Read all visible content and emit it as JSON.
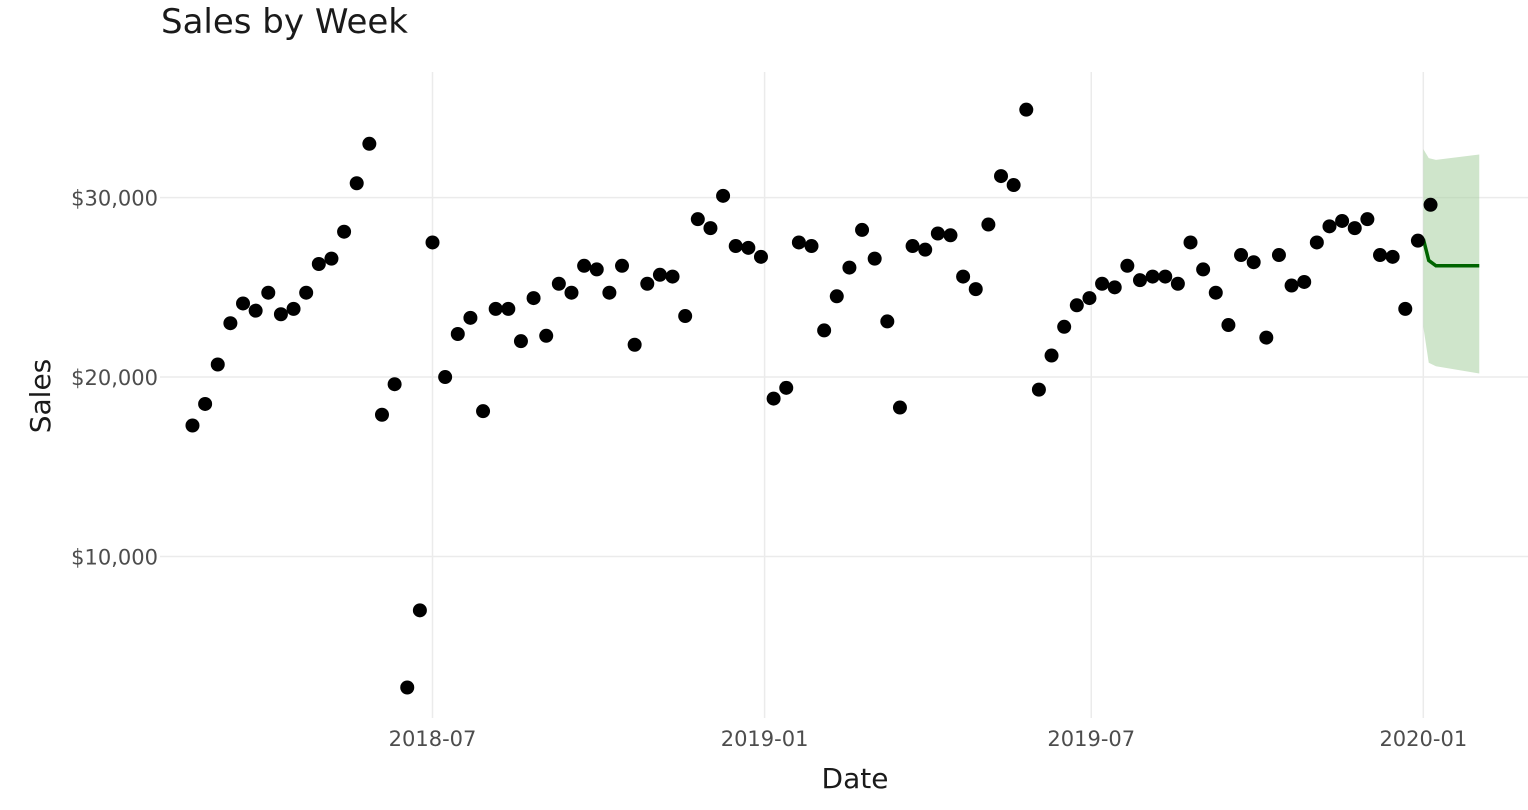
{
  "chart_data": {
    "type": "scatter",
    "title": "Sales by Week",
    "xlabel": "Date",
    "ylabel": "Sales",
    "x_axis": {
      "scale": "date",
      "range": [
        "2018-01-31",
        "2020-02-28"
      ],
      "ticks": [
        {
          "date": "2018-07-01",
          "label": "2018-07"
        },
        {
          "date": "2019-01-01",
          "label": "2019-01"
        },
        {
          "date": "2019-07-01",
          "label": "2019-07"
        },
        {
          "date": "2020-01-01",
          "label": "2020-01"
        }
      ]
    },
    "y_axis": {
      "range": [
        1000,
        37000
      ],
      "ticks": [
        {
          "value": 10000,
          "label": "$10,000"
        },
        {
          "value": 20000,
          "label": "$20,000"
        },
        {
          "value": 30000,
          "label": "$30,000"
        }
      ]
    },
    "grid": true,
    "series": [
      {
        "type": "scatter",
        "color": "#000000",
        "points": [
          {
            "x": "2018-02-18",
            "y": 17300
          },
          {
            "x": "2018-02-25",
            "y": 18500
          },
          {
            "x": "2018-03-04",
            "y": 20700
          },
          {
            "x": "2018-03-11",
            "y": 23000
          },
          {
            "x": "2018-03-18",
            "y": 24100
          },
          {
            "x": "2018-03-25",
            "y": 23700
          },
          {
            "x": "2018-04-01",
            "y": 24700
          },
          {
            "x": "2018-04-08",
            "y": 23500
          },
          {
            "x": "2018-04-15",
            "y": 23800
          },
          {
            "x": "2018-04-22",
            "y": 24700
          },
          {
            "x": "2018-04-29",
            "y": 26300
          },
          {
            "x": "2018-05-06",
            "y": 26600
          },
          {
            "x": "2018-05-13",
            "y": 28100
          },
          {
            "x": "2018-05-20",
            "y": 30800
          },
          {
            "x": "2018-05-27",
            "y": 33000
          },
          {
            "x": "2018-06-03",
            "y": 17900
          },
          {
            "x": "2018-06-10",
            "y": 19600
          },
          {
            "x": "2018-06-17",
            "y": 2700
          },
          {
            "x": "2018-06-24",
            "y": 7000
          },
          {
            "x": "2018-07-01",
            "y": 27500
          },
          {
            "x": "2018-07-08",
            "y": 20000
          },
          {
            "x": "2018-07-15",
            "y": 22400
          },
          {
            "x": "2018-07-22",
            "y": 23300
          },
          {
            "x": "2018-07-29",
            "y": 18100
          },
          {
            "x": "2018-08-05",
            "y": 23800
          },
          {
            "x": "2018-08-12",
            "y": 23800
          },
          {
            "x": "2018-08-19",
            "y": 22000
          },
          {
            "x": "2018-08-26",
            "y": 24400
          },
          {
            "x": "2018-09-02",
            "y": 22300
          },
          {
            "x": "2018-09-09",
            "y": 25200
          },
          {
            "x": "2018-09-16",
            "y": 24700
          },
          {
            "x": "2018-09-23",
            "y": 26200
          },
          {
            "x": "2018-09-30",
            "y": 26000
          },
          {
            "x": "2018-10-07",
            "y": 24700
          },
          {
            "x": "2018-10-14",
            "y": 26200
          },
          {
            "x": "2018-10-21",
            "y": 21800
          },
          {
            "x": "2018-10-28",
            "y": 25200
          },
          {
            "x": "2018-11-04",
            "y": 25700
          },
          {
            "x": "2018-11-11",
            "y": 25600
          },
          {
            "x": "2018-11-18",
            "y": 23400
          },
          {
            "x": "2018-11-25",
            "y": 28800
          },
          {
            "x": "2018-12-02",
            "y": 28300
          },
          {
            "x": "2018-12-09",
            "y": 30100
          },
          {
            "x": "2018-12-16",
            "y": 27300
          },
          {
            "x": "2018-12-23",
            "y": 27200
          },
          {
            "x": "2018-12-30",
            "y": 26700
          },
          {
            "x": "2019-01-06",
            "y": 18800
          },
          {
            "x": "2019-01-13",
            "y": 19400
          },
          {
            "x": "2019-01-20",
            "y": 27500
          },
          {
            "x": "2019-01-27",
            "y": 27300
          },
          {
            "x": "2019-02-03",
            "y": 22600
          },
          {
            "x": "2019-02-10",
            "y": 24500
          },
          {
            "x": "2019-02-17",
            "y": 26100
          },
          {
            "x": "2019-02-24",
            "y": 28200
          },
          {
            "x": "2019-03-03",
            "y": 26600
          },
          {
            "x": "2019-03-10",
            "y": 23100
          },
          {
            "x": "2019-03-17",
            "y": 18300
          },
          {
            "x": "2019-03-24",
            "y": 27300
          },
          {
            "x": "2019-03-31",
            "y": 27100
          },
          {
            "x": "2019-04-07",
            "y": 28000
          },
          {
            "x": "2019-04-14",
            "y": 27900
          },
          {
            "x": "2019-04-21",
            "y": 25600
          },
          {
            "x": "2019-04-28",
            "y": 24900
          },
          {
            "x": "2019-05-05",
            "y": 28500
          },
          {
            "x": "2019-05-12",
            "y": 31200
          },
          {
            "x": "2019-05-19",
            "y": 30700
          },
          {
            "x": "2019-05-26",
            "y": 34900
          },
          {
            "x": "2019-06-02",
            "y": 19300
          },
          {
            "x": "2019-06-09",
            "y": 21200
          },
          {
            "x": "2019-06-16",
            "y": 22800
          },
          {
            "x": "2019-06-23",
            "y": 24000
          },
          {
            "x": "2019-06-30",
            "y": 24400
          },
          {
            "x": "2019-07-07",
            "y": 25200
          },
          {
            "x": "2019-07-14",
            "y": 25000
          },
          {
            "x": "2019-07-21",
            "y": 26200
          },
          {
            "x": "2019-07-28",
            "y": 25400
          },
          {
            "x": "2019-08-04",
            "y": 25600
          },
          {
            "x": "2019-08-11",
            "y": 25600
          },
          {
            "x": "2019-08-18",
            "y": 25200
          },
          {
            "x": "2019-08-25",
            "y": 27500
          },
          {
            "x": "2019-09-01",
            "y": 26000
          },
          {
            "x": "2019-09-08",
            "y": 24700
          },
          {
            "x": "2019-09-15",
            "y": 22900
          },
          {
            "x": "2019-09-22",
            "y": 26800
          },
          {
            "x": "2019-09-29",
            "y": 26400
          },
          {
            "x": "2019-10-06",
            "y": 22200
          },
          {
            "x": "2019-10-13",
            "y": 26800
          },
          {
            "x": "2019-10-20",
            "y": 25100
          },
          {
            "x": "2019-10-27",
            "y": 25300
          },
          {
            "x": "2019-11-03",
            "y": 27500
          },
          {
            "x": "2019-11-10",
            "y": 28400
          },
          {
            "x": "2019-11-17",
            "y": 28700
          },
          {
            "x": "2019-11-24",
            "y": 28300
          },
          {
            "x": "2019-12-01",
            "y": 28800
          },
          {
            "x": "2019-12-08",
            "y": 26800
          },
          {
            "x": "2019-12-15",
            "y": 26700
          },
          {
            "x": "2019-12-22",
            "y": 23800
          },
          {
            "x": "2019-12-29",
            "y": 27600
          },
          {
            "x": "2020-01-05",
            "y": 29600
          }
        ]
      },
      {
        "type": "line",
        "color": "#006400",
        "band_color": "#a8cfa0",
        "points": [
          {
            "x": "2020-01-01",
            "y": 27700,
            "lower": 22800,
            "upper": 32700
          },
          {
            "x": "2020-01-04",
            "y": 26500,
            "lower": 20800,
            "upper": 32200
          },
          {
            "x": "2020-01-08",
            "y": 26200,
            "lower": 20600,
            "upper": 32100
          },
          {
            "x": "2020-02-01",
            "y": 26200,
            "lower": 20200,
            "upper": 32400
          }
        ]
      }
    ]
  }
}
